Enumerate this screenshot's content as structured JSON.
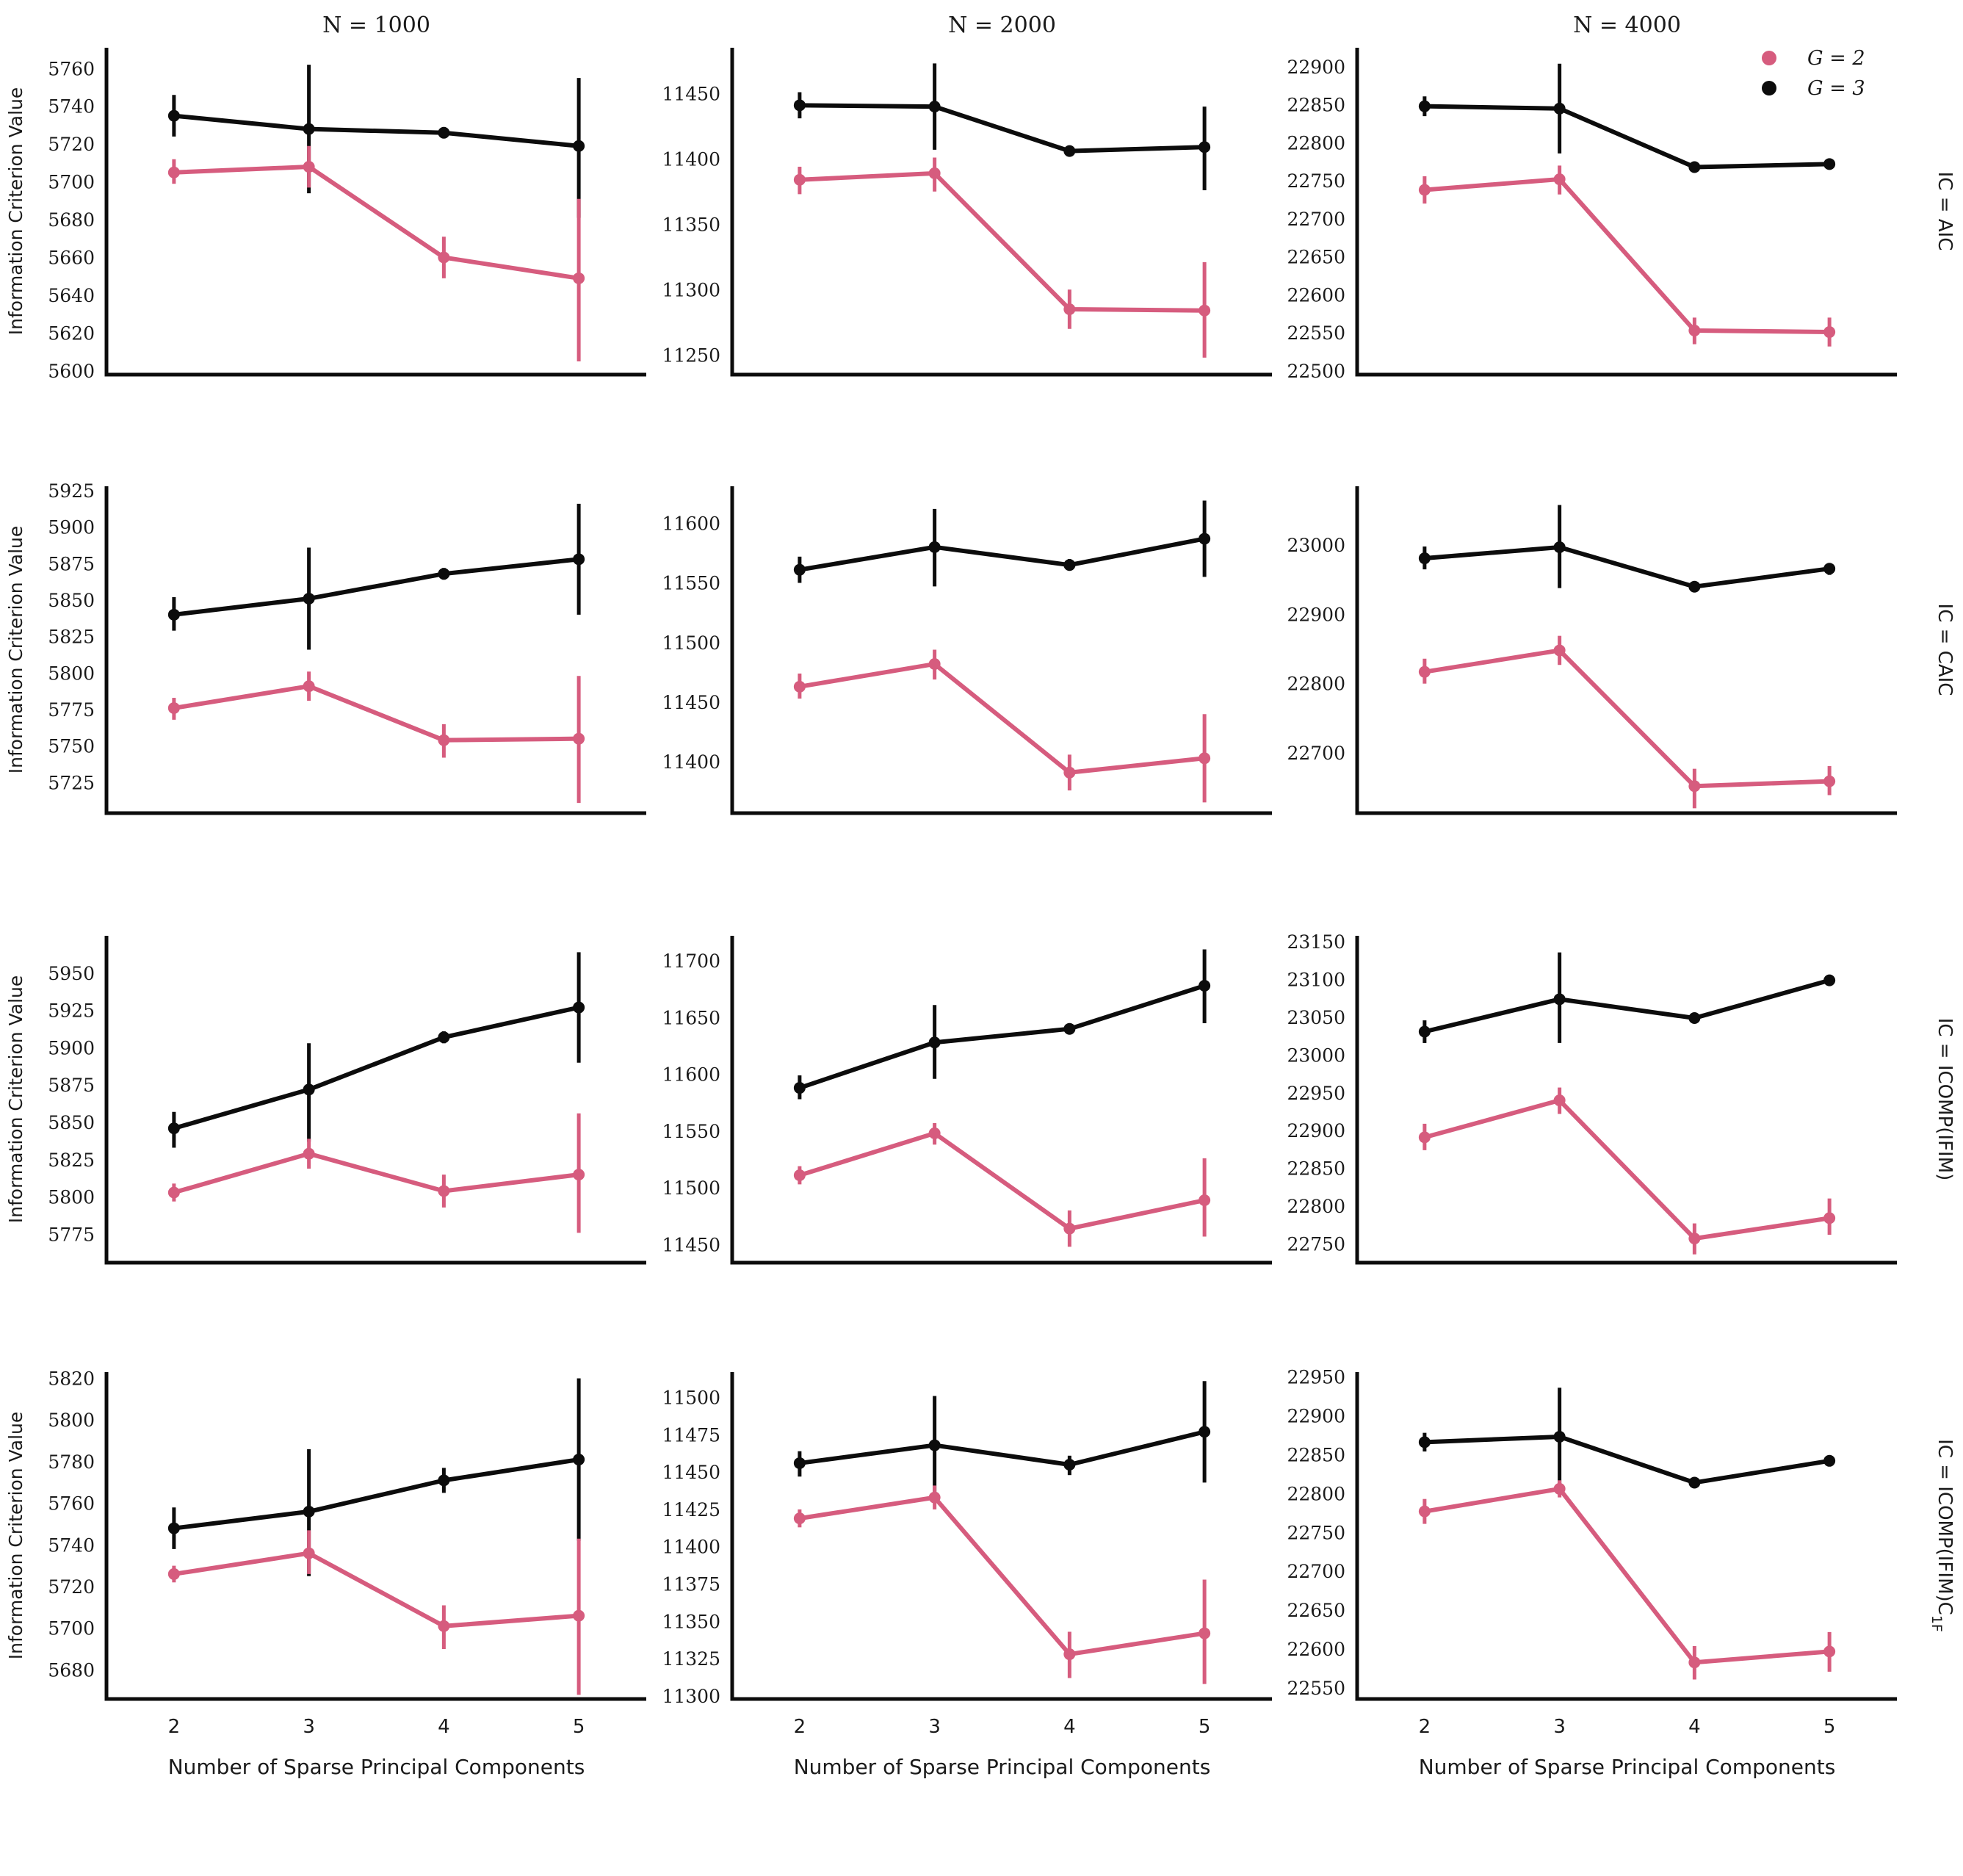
{
  "figure": {
    "ylabel": "Information Criterion Value",
    "xlabel": "Number of Sparse Principal Components",
    "col_titles": [
      "N = 1000",
      "N = 2000",
      "N = 4000"
    ],
    "row_labels": [
      {
        "main": "IC = AIC",
        "sub": ""
      },
      {
        "main": "IC = CAIC",
        "sub": ""
      },
      {
        "main": "IC = ICOMP(IFIM)",
        "sub": ""
      },
      {
        "main": "IC = ICOMP(IFIM)C",
        "sub": "1F"
      }
    ],
    "x_tick_labels": [
      "2",
      "3",
      "4",
      "5"
    ],
    "legend": {
      "entries": [
        {
          "label": "G = 2",
          "color": "#d65c7e"
        },
        {
          "label": "G = 3",
          "color": "#0c0c0c"
        }
      ]
    },
    "colors": {
      "pink": "#d65c7e",
      "black": "#0c0c0c",
      "text": "#1a1a1a"
    }
  },
  "chart_data": [
    {
      "type": "line",
      "row": "AIC",
      "col": "N = 1000",
      "x": [
        2,
        3,
        4,
        5
      ],
      "ylim": [
        5598,
        5771
      ],
      "yticks": [
        5600,
        5620,
        5640,
        5660,
        5680,
        5700,
        5720,
        5740,
        5760
      ],
      "series": [
        {
          "name": "G = 3",
          "color": "#0c0c0c",
          "means": [
            5735,
            5728,
            5726,
            5719
          ],
          "lo": [
            5724,
            5694,
            5723,
            5681
          ],
          "hi": [
            5746,
            5762,
            5729,
            5755
          ]
        },
        {
          "name": "G = 2",
          "color": "#d65c7e",
          "means": [
            5705,
            5708,
            5660,
            5649
          ],
          "lo": [
            5699,
            5697,
            5649,
            5605
          ],
          "hi": [
            5712,
            5719,
            5671,
            5691
          ]
        }
      ]
    },
    {
      "type": "line",
      "row": "AIC",
      "col": "N = 2000",
      "x": [
        2,
        3,
        4,
        5
      ],
      "ylim": [
        11235,
        11485
      ],
      "yticks": [
        11250,
        11300,
        11350,
        11400,
        11450
      ],
      "series": [
        {
          "name": "G = 3",
          "color": "#0c0c0c",
          "means": [
            11441,
            11440,
            11406,
            11409
          ],
          "lo": [
            11431,
            11407,
            11402,
            11376
          ],
          "hi": [
            11451,
            11473,
            11410,
            11440
          ]
        },
        {
          "name": "G = 2",
          "color": "#d65c7e",
          "means": [
            11384,
            11389,
            11285,
            11284
          ],
          "lo": [
            11373,
            11375,
            11270,
            11248
          ],
          "hi": [
            11394,
            11401,
            11300,
            11321
          ]
        }
      ]
    },
    {
      "type": "line",
      "row": "AIC",
      "col": "N = 4000",
      "x": [
        2,
        3,
        4,
        5
      ],
      "ylim": [
        22495,
        22925
      ],
      "yticks": [
        22500,
        22550,
        22600,
        22650,
        22700,
        22750,
        22800,
        22850,
        22900
      ],
      "series": [
        {
          "name": "G = 3",
          "color": "#0c0c0c",
          "means": [
            22848,
            22845,
            22768,
            22772
          ],
          "lo": [
            22835,
            22786,
            22762,
            22765
          ],
          "hi": [
            22861,
            22904,
            22774,
            22779
          ]
        },
        {
          "name": "G = 2",
          "color": "#d65c7e",
          "means": [
            22738,
            22752,
            22553,
            22551
          ],
          "lo": [
            22720,
            22732,
            22535,
            22532
          ],
          "hi": [
            22756,
            22770,
            22570,
            22570
          ]
        }
      ]
    },
    {
      "type": "line",
      "row": "CAIC",
      "col": "N = 1000",
      "x": [
        2,
        3,
        4,
        5
      ],
      "ylim": [
        5704,
        5928
      ],
      "yticks": [
        5725,
        5750,
        5775,
        5800,
        5825,
        5850,
        5875,
        5900,
        5925
      ],
      "series": [
        {
          "name": "G = 3",
          "color": "#0c0c0c",
          "means": [
            5840,
            5851,
            5868,
            5878
          ],
          "lo": [
            5829,
            5816,
            5864,
            5840
          ],
          "hi": [
            5852,
            5886,
            5872,
            5916
          ]
        },
        {
          "name": "G = 2",
          "color": "#d65c7e",
          "means": [
            5776,
            5791,
            5754,
            5755
          ],
          "lo": [
            5768,
            5781,
            5742,
            5711
          ],
          "hi": [
            5783,
            5801,
            5765,
            5798
          ]
        }
      ]
    },
    {
      "type": "line",
      "row": "CAIC",
      "col": "N = 2000",
      "x": [
        2,
        3,
        4,
        5
      ],
      "ylim": [
        11357,
        11631
      ],
      "yticks": [
        11400,
        11450,
        11500,
        11550,
        11600
      ],
      "series": [
        {
          "name": "G = 3",
          "color": "#0c0c0c",
          "means": [
            11561,
            11580,
            11565,
            11587
          ],
          "lo": [
            11550,
            11547,
            11561,
            11555
          ],
          "hi": [
            11572,
            11612,
            11570,
            11619
          ]
        },
        {
          "name": "G = 2",
          "color": "#d65c7e",
          "means": [
            11463,
            11482,
            11391,
            11403
          ],
          "lo": [
            11453,
            11469,
            11376,
            11366
          ],
          "hi": [
            11474,
            11494,
            11406,
            11440
          ]
        }
      ]
    },
    {
      "type": "line",
      "row": "CAIC",
      "col": "N = 4000",
      "x": [
        2,
        3,
        4,
        5
      ],
      "ylim": [
        22613,
        23085
      ],
      "yticks": [
        22700,
        22800,
        22900,
        23000
      ],
      "series": [
        {
          "name": "G = 3",
          "color": "#0c0c0c",
          "means": [
            22981,
            22997,
            22940,
            22966
          ],
          "lo": [
            22965,
            22938,
            22934,
            22957
          ],
          "hi": [
            22998,
            23058,
            22946,
            22974
          ]
        },
        {
          "name": "G = 2",
          "color": "#d65c7e",
          "means": [
            22817,
            22848,
            22652,
            22659
          ],
          "lo": [
            22800,
            22827,
            22620,
            22639
          ],
          "hi": [
            22836,
            22869,
            22677,
            22681
          ]
        }
      ]
    },
    {
      "type": "line",
      "row": "ICOMP(IFIM)",
      "col": "N = 1000",
      "x": [
        2,
        3,
        4,
        5
      ],
      "ylim": [
        5756,
        5975
      ],
      "yticks": [
        5775,
        5800,
        5825,
        5850,
        5875,
        5900,
        5925,
        5950
      ],
      "series": [
        {
          "name": "G = 3",
          "color": "#0c0c0c",
          "means": [
            5846,
            5872,
            5907,
            5927
          ],
          "lo": [
            5833,
            5837,
            5903,
            5890
          ],
          "hi": [
            5857,
            5903,
            5911,
            5964
          ]
        },
        {
          "name": "G = 2",
          "color": "#d65c7e",
          "means": [
            5803,
            5829,
            5804,
            5815
          ],
          "lo": [
            5797,
            5819,
            5793,
            5776
          ],
          "hi": [
            5809,
            5839,
            5815,
            5856
          ]
        }
      ]
    },
    {
      "type": "line",
      "row": "ICOMP(IFIM)",
      "col": "N = 2000",
      "x": [
        2,
        3,
        4,
        5
      ],
      "ylim": [
        11434,
        11722
      ],
      "yticks": [
        11450,
        11500,
        11550,
        11600,
        11650,
        11700
      ],
      "series": [
        {
          "name": "G = 3",
          "color": "#0c0c0c",
          "means": [
            11588,
            11628,
            11640,
            11678
          ],
          "lo": [
            11578,
            11596,
            11636,
            11645
          ],
          "hi": [
            11599,
            11661,
            11644,
            11710
          ]
        },
        {
          "name": "G = 2",
          "color": "#d65c7e",
          "means": [
            11511,
            11548,
            11464,
            11489
          ],
          "lo": [
            11503,
            11538,
            11448,
            11457
          ],
          "hi": [
            11519,
            11557,
            11480,
            11526
          ]
        }
      ]
    },
    {
      "type": "line",
      "row": "ICOMP(IFIM)",
      "col": "N = 4000",
      "x": [
        2,
        3,
        4,
        5
      ],
      "ylim": [
        22725,
        23158
      ],
      "yticks": [
        22750,
        22800,
        22850,
        22900,
        22950,
        23000,
        23050,
        23100,
        23150
      ],
      "series": [
        {
          "name": "G = 3",
          "color": "#0c0c0c",
          "means": [
            23031,
            23074,
            23049,
            23099
          ],
          "lo": [
            23016,
            23016,
            23043,
            23092
          ],
          "hi": [
            23046,
            23136,
            23055,
            23106
          ]
        },
        {
          "name": "G = 2",
          "color": "#d65c7e",
          "means": [
            22891,
            22940,
            22757,
            22784
          ],
          "lo": [
            22874,
            22922,
            22736,
            22762
          ],
          "hi": [
            22909,
            22957,
            22777,
            22810
          ]
        }
      ]
    },
    {
      "type": "line",
      "row": "ICOMP(IFIM)C1F",
      "col": "N = 1000",
      "x": [
        2,
        3,
        4,
        5
      ],
      "ylim": [
        5666,
        5823
      ],
      "yticks": [
        5680,
        5700,
        5720,
        5740,
        5760,
        5780,
        5800,
        5820
      ],
      "series": [
        {
          "name": "G = 3",
          "color": "#0c0c0c",
          "means": [
            5748,
            5756,
            5771,
            5781
          ],
          "lo": [
            5738,
            5725,
            5765,
            5742
          ],
          "hi": [
            5758,
            5786,
            5777,
            5820
          ]
        },
        {
          "name": "G = 2",
          "color": "#d65c7e",
          "means": [
            5726,
            5736,
            5701,
            5706
          ],
          "lo": [
            5722,
            5726,
            5690,
            5668
          ],
          "hi": [
            5730,
            5747,
            5711,
            5743
          ]
        }
      ]
    },
    {
      "type": "line",
      "row": "ICOMP(IFIM)C1F",
      "col": "N = 2000",
      "x": [
        2,
        3,
        4,
        5
      ],
      "ylim": [
        11298,
        11517
      ],
      "yticks": [
        11300,
        11325,
        11350,
        11375,
        11400,
        11425,
        11450,
        11475,
        11500
      ],
      "series": [
        {
          "name": "G = 3",
          "color": "#0c0c0c",
          "means": [
            11456,
            11468,
            11455,
            11477
          ],
          "lo": [
            11447,
            11436,
            11448,
            11443
          ],
          "hi": [
            11464,
            11501,
            11461,
            11511
          ]
        },
        {
          "name": "G = 2",
          "color": "#d65c7e",
          "means": [
            11419,
            11433,
            11328,
            11342
          ],
          "lo": [
            11413,
            11425,
            11312,
            11308
          ],
          "hi": [
            11425,
            11441,
            11343,
            11378
          ]
        }
      ]
    },
    {
      "type": "line",
      "row": "ICOMP(IFIM)C1F",
      "col": "N = 4000",
      "x": [
        2,
        3,
        4,
        5
      ],
      "ylim": [
        22536,
        22956
      ],
      "yticks": [
        22550,
        22600,
        22650,
        22700,
        22750,
        22800,
        22850,
        22900,
        22950
      ],
      "series": [
        {
          "name": "G = 3",
          "color": "#0c0c0c",
          "means": [
            22866,
            22873,
            22814,
            22842
          ],
          "lo": [
            22854,
            22809,
            22808,
            22835
          ],
          "hi": [
            22878,
            22936,
            22820,
            22849
          ]
        },
        {
          "name": "G = 2",
          "color": "#d65c7e",
          "means": [
            22777,
            22806,
            22583,
            22597
          ],
          "lo": [
            22761,
            22795,
            22561,
            22571
          ],
          "hi": [
            22793,
            22817,
            22604,
            22622
          ]
        }
      ]
    }
  ]
}
